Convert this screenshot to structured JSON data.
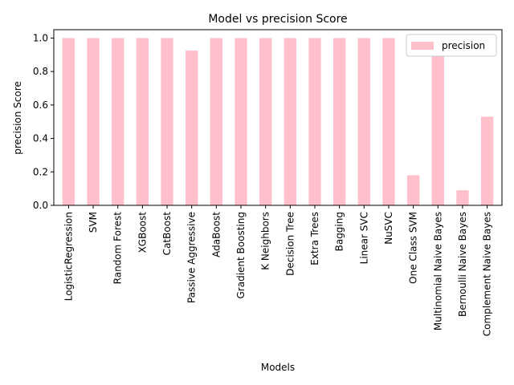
{
  "chart_data": {
    "type": "bar",
    "title": "Model vs precision Score",
    "xlabel": "Models",
    "ylabel": "precision Score",
    "categories": [
      "LogisticRegression",
      "SVM",
      "Random Forest",
      "XGBoost",
      "CatBoost",
      "Passive Aggressive",
      "AdaBoost",
      "Gradient Boosting",
      "K Neighbors",
      "Decision Tree",
      "Extra Trees",
      "Bagging",
      "Linear SVC",
      "NuSVC",
      "One Class SVM",
      "Multinomial Naive Bayes",
      "Bernoulli Naive Bayes",
      "Complement Naive Bayes"
    ],
    "series": [
      {
        "name": "precision",
        "color": "#ffc0cb",
        "values": [
          1.0,
          1.0,
          1.0,
          1.0,
          1.0,
          0.925,
          1.0,
          1.0,
          1.0,
          1.0,
          1.0,
          1.0,
          1.0,
          1.0,
          0.18,
          0.91,
          0.09,
          0.53
        ]
      }
    ],
    "ylim": [
      0,
      1.05
    ],
    "yticks": [
      0.0,
      0.2,
      0.4,
      0.6,
      0.8,
      1.0
    ],
    "ytick_labels": [
      "0.0",
      "0.2",
      "0.4",
      "0.6",
      "0.8",
      "1.0"
    ],
    "grid": false,
    "legend_position": "top-right"
  }
}
